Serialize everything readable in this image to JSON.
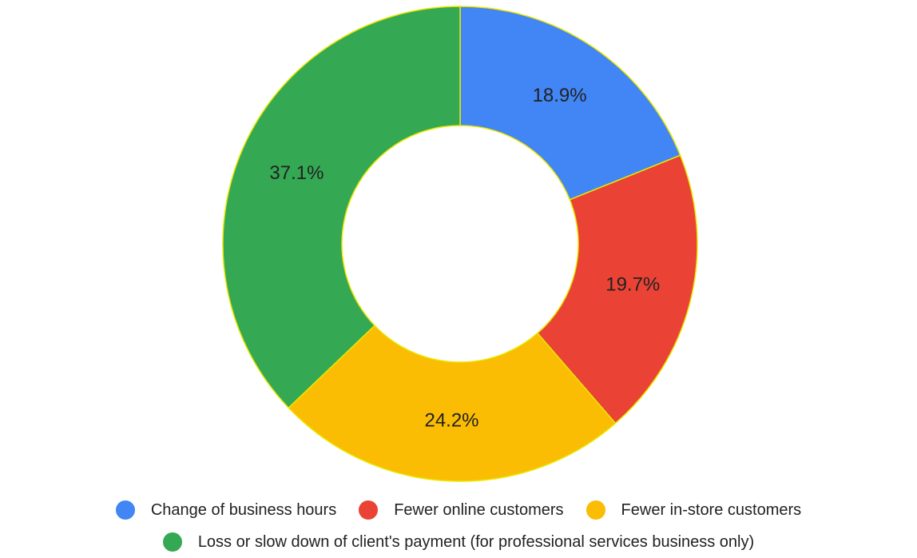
{
  "chart_data": {
    "type": "donut",
    "categories": [
      "Change of business hours",
      "Fewer online customers",
      "Fewer in-store customers",
      "Loss or slow down of client's payment (for professional services business only)"
    ],
    "values": [
      18.9,
      19.7,
      24.2,
      37.1
    ],
    "value_labels": [
      "18.9%",
      "19.7%",
      "24.2%",
      "37.1%"
    ],
    "colors": [
      "#4285f4",
      "#ea4335",
      "#fbbc04",
      "#34a853"
    ],
    "legend": "bottom"
  }
}
